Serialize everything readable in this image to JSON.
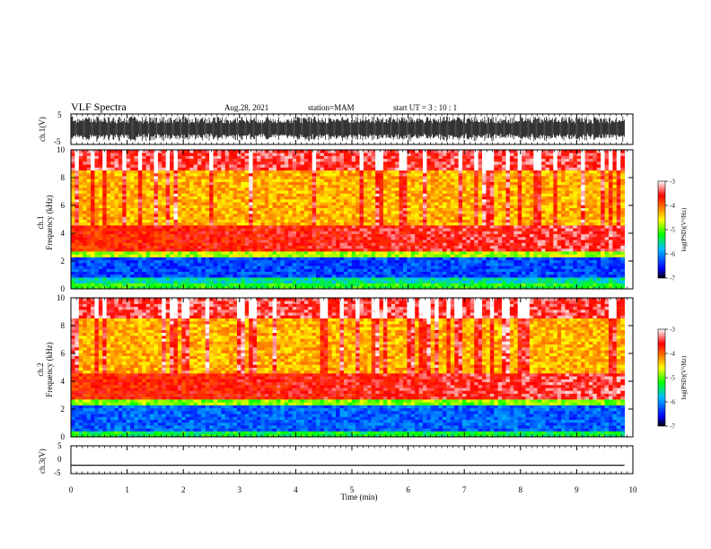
{
  "header": {
    "title": "VLF Spectra",
    "date": "Aug.28, 2021",
    "station": "station=MAM",
    "start": "start UT =  3 : 10 : 1"
  },
  "chart_data": [
    {
      "type": "line",
      "panel": "ch1-waveform",
      "ylabel": "ch.1(V)",
      "ylim": [
        -5,
        5
      ],
      "yticks": [
        "5",
        "-5"
      ],
      "xlim": [
        0,
        10
      ],
      "signal": "dense noise waveform filling approx -4 to 4 V"
    },
    {
      "type": "heatmap",
      "panel": "ch1-spectrogram",
      "ylabel_line1": "ch.1",
      "ylabel_line2": "Frequency (kHz)",
      "ylim": [
        0,
        10
      ],
      "yticks": [
        "0",
        "2",
        "4",
        "6",
        "8",
        "10"
      ],
      "xlim": [
        0,
        9.85
      ],
      "colorbar_label": "log(PSD)(V²/Hz)",
      "colorbar_ticks": [
        "-3",
        "-4",
        "-5",
        "-6",
        "-7"
      ],
      "colorbar_range": [
        -7,
        -3
      ],
      "bands_khz": [
        {
          "from": 0,
          "to": 0.5,
          "level": -5.2
        },
        {
          "from": 0.5,
          "to": 0.8,
          "level": -5.6
        },
        {
          "from": 0.8,
          "to": 2.2,
          "level": -6.3
        },
        {
          "from": 2.2,
          "to": 2.8,
          "level": -4.8
        },
        {
          "from": 2.8,
          "to": 4.5,
          "level": -3.7
        },
        {
          "from": 4.5,
          "to": 8.5,
          "level": -4.3
        },
        {
          "from": 8.5,
          "to": 10,
          "level": -3.4
        }
      ]
    },
    {
      "type": "heatmap",
      "panel": "ch2-spectrogram",
      "ylabel_line1": "ch.2",
      "ylabel_line2": "Frequency (kHz)",
      "ylim": [
        0,
        10
      ],
      "yticks": [
        "0",
        "2",
        "4",
        "6",
        "8",
        "10"
      ],
      "xlim": [
        0,
        9.85
      ],
      "colorbar_label": "log(PSD)(V²/Hz)",
      "colorbar_ticks": [
        "-3",
        "-4",
        "-5",
        "-6",
        "-7"
      ],
      "colorbar_range": [
        -7,
        -3
      ],
      "bands_khz": [
        {
          "from": 0,
          "to": 0.4,
          "level": -5.3
        },
        {
          "from": 0.4,
          "to": 2.2,
          "level": -6.2
        },
        {
          "from": 2.2,
          "to": 2.8,
          "level": -4.9
        },
        {
          "from": 2.8,
          "to": 4.5,
          "level": -3.7
        },
        {
          "from": 4.5,
          "to": 8.5,
          "level": -4.3
        },
        {
          "from": 8.5,
          "to": 10,
          "level": -3.4
        }
      ]
    },
    {
      "type": "line",
      "panel": "ch3-waveform",
      "ylabel": "ch.3(V)",
      "ylim": [
        -5,
        5
      ],
      "yticks": [
        "5",
        "0",
        "-5"
      ],
      "xlim": [
        0,
        10
      ],
      "x": [
        0,
        9.85
      ],
      "y": [
        -2,
        -2
      ]
    }
  ],
  "xaxis": {
    "label": "Time (min)",
    "ticks": [
      "0",
      "1",
      "2",
      "3",
      "4",
      "5",
      "6",
      "7",
      "8",
      "9",
      "10"
    ]
  },
  "colors": {
    "colorscale": [
      "#000000",
      "#0000ff",
      "#00ffff",
      "#00ff00",
      "#ffff00",
      "#ff8000",
      "#ff0000",
      "#ffffff"
    ]
  }
}
